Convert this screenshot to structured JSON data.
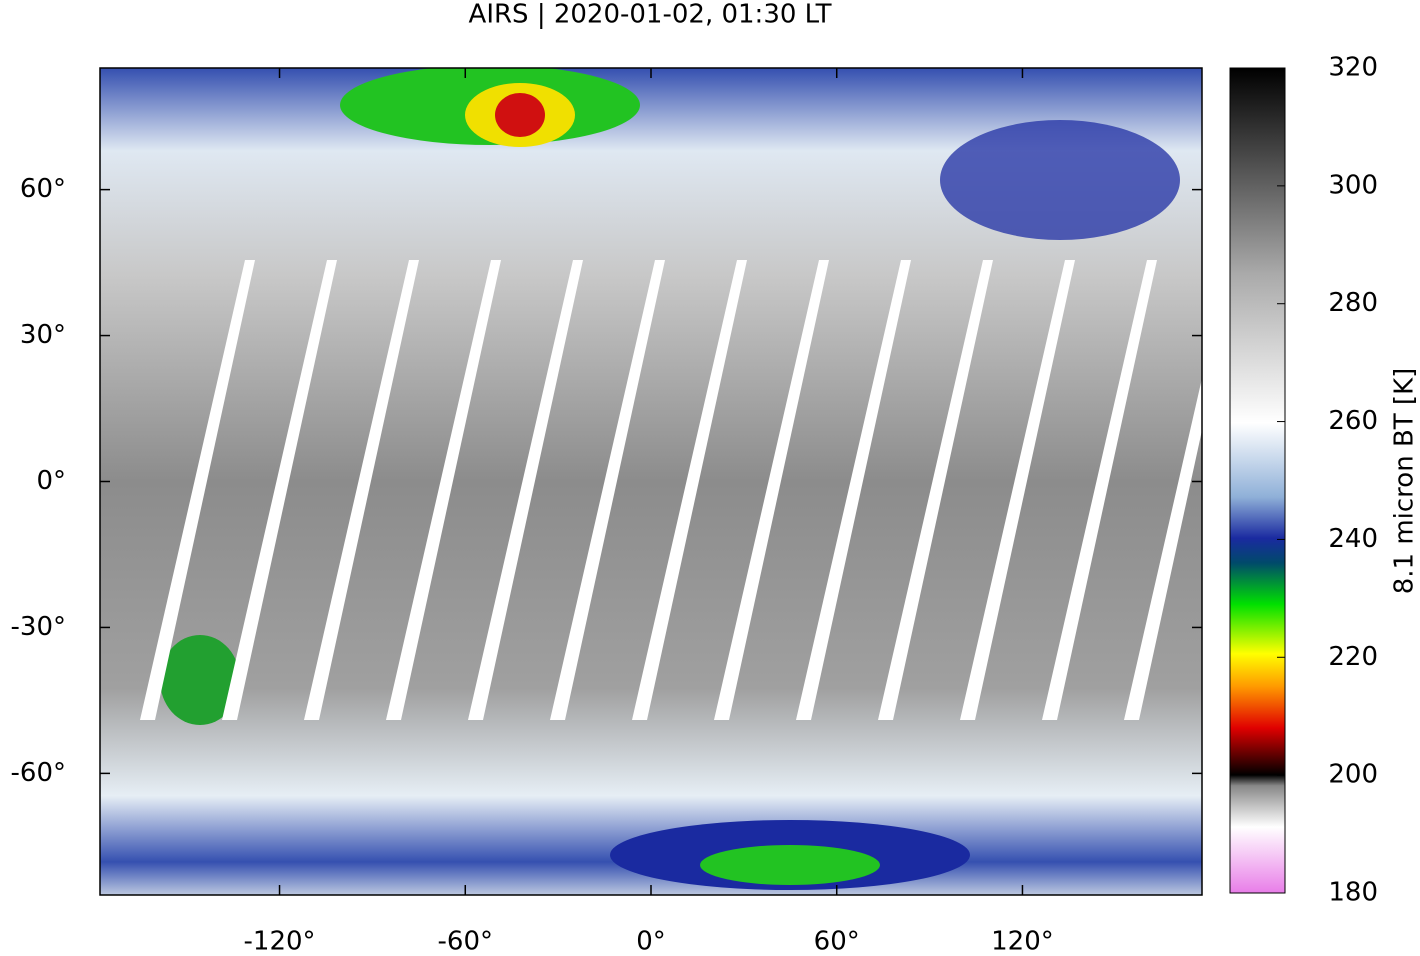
{
  "chart_data": {
    "type": "map",
    "title": "AIRS | 2020-01-02, 01:30 LT",
    "xlim": [
      -178,
      178
    ],
    "ylim": [
      -85,
      85
    ],
    "xticks": [
      {
        "value": -120,
        "label": "-120°"
      },
      {
        "value": -60,
        "label": "-60°"
      },
      {
        "value": 0,
        "label": "0°"
      },
      {
        "value": 60,
        "label": "60°"
      },
      {
        "value": 120,
        "label": "120°"
      }
    ],
    "yticks": [
      {
        "value": 60,
        "label": "60°"
      },
      {
        "value": 30,
        "label": "30°"
      },
      {
        "value": 0,
        "label": "0°"
      },
      {
        "value": -30,
        "label": "-30°"
      },
      {
        "value": -60,
        "label": "-60°"
      }
    ],
    "colorbar": {
      "label": "8.1 micron BT [K]",
      "lim": [
        180,
        320
      ],
      "ticks": [
        180,
        200,
        220,
        240,
        260,
        280,
        300,
        320
      ]
    }
  }
}
